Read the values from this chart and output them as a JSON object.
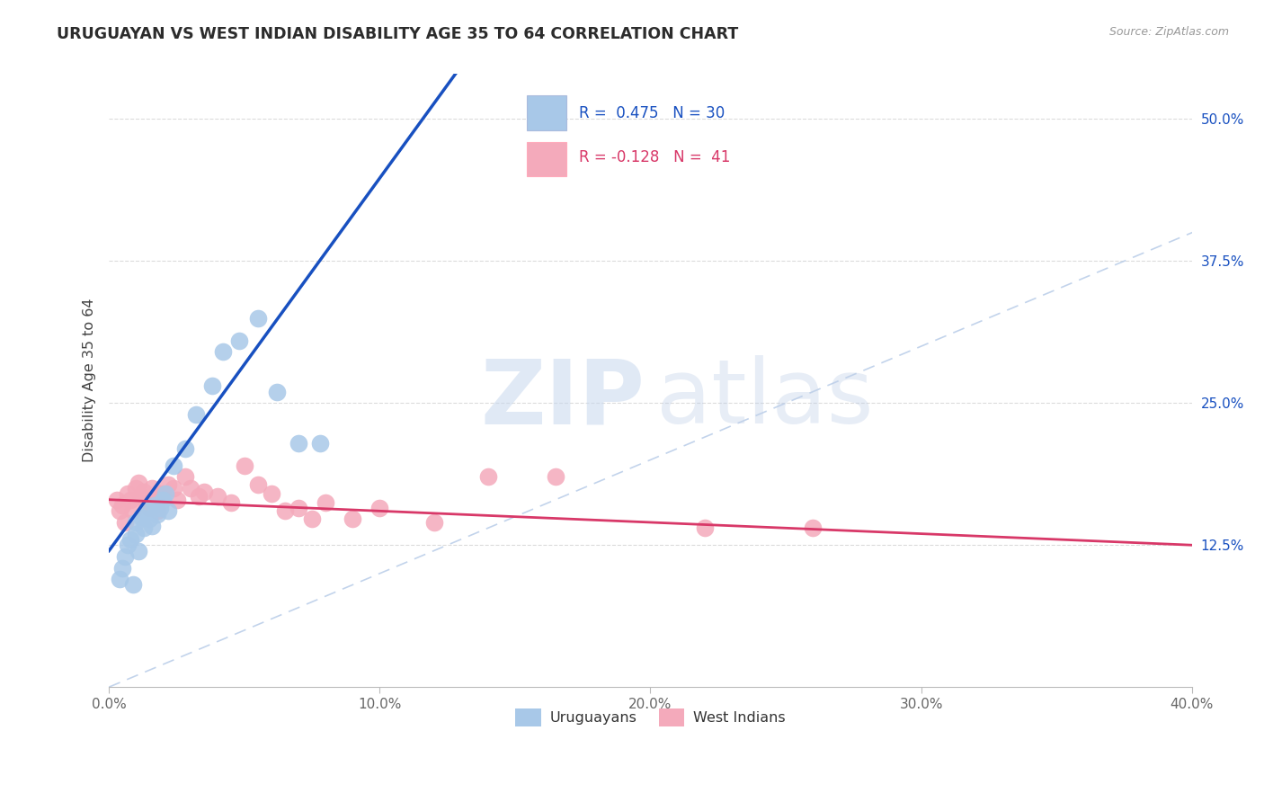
{
  "title": "URUGUAYAN VS WEST INDIAN DISABILITY AGE 35 TO 64 CORRELATION CHART",
  "source_text": "Source: ZipAtlas.com",
  "ylabel": "Disability Age 35 to 64",
  "xlim": [
    0.0,
    0.4
  ],
  "ylim": [
    0.0,
    0.54
  ],
  "xtick_values": [
    0.0,
    0.1,
    0.2,
    0.3,
    0.4
  ],
  "xtick_labels": [
    "0.0%",
    "10.0%",
    "20.0%",
    "30.0%",
    "40.0%"
  ],
  "ytick_values": [
    0.125,
    0.25,
    0.375,
    0.5
  ],
  "ytick_labels": [
    "12.5%",
    "25.0%",
    "37.5%",
    "50.0%"
  ],
  "legend_labels": [
    "Uruguayans",
    "West Indians"
  ],
  "uruguayan_color": "#A8C8E8",
  "west_indian_color": "#F4AABB",
  "uruguayan_line_color": "#1850C0",
  "west_indian_line_color": "#D83868",
  "diagonal_color": "#B8CCE8",
  "R_uruguayan": 0.475,
  "N_uruguayan": 30,
  "R_west_indian": -0.128,
  "N_west_indian": 41,
  "uruguayan_x": [
    0.004,
    0.005,
    0.006,
    0.007,
    0.008,
    0.009,
    0.01,
    0.01,
    0.011,
    0.012,
    0.013,
    0.014,
    0.015,
    0.016,
    0.017,
    0.018,
    0.019,
    0.02,
    0.021,
    0.022,
    0.024,
    0.028,
    0.032,
    0.038,
    0.042,
    0.048,
    0.055,
    0.062,
    0.07,
    0.078
  ],
  "uruguayan_y": [
    0.095,
    0.105,
    0.115,
    0.125,
    0.13,
    0.09,
    0.135,
    0.145,
    0.12,
    0.15,
    0.14,
    0.155,
    0.148,
    0.142,
    0.16,
    0.152,
    0.158,
    0.165,
    0.17,
    0.155,
    0.195,
    0.21,
    0.24,
    0.265,
    0.295,
    0.305,
    0.325,
    0.26,
    0.215,
    0.215
  ],
  "west_indian_x": [
    0.003,
    0.004,
    0.005,
    0.006,
    0.007,
    0.008,
    0.009,
    0.01,
    0.011,
    0.012,
    0.013,
    0.014,
    0.015,
    0.016,
    0.017,
    0.018,
    0.019,
    0.02,
    0.022,
    0.024,
    0.025,
    0.028,
    0.03,
    0.033,
    0.035,
    0.04,
    0.045,
    0.05,
    0.055,
    0.06,
    0.065,
    0.07,
    0.075,
    0.08,
    0.09,
    0.1,
    0.12,
    0.14,
    0.165,
    0.22,
    0.26
  ],
  "west_indian_y": [
    0.165,
    0.155,
    0.16,
    0.145,
    0.17,
    0.165,
    0.155,
    0.175,
    0.18,
    0.168,
    0.172,
    0.162,
    0.158,
    0.175,
    0.162,
    0.155,
    0.168,
    0.17,
    0.178,
    0.175,
    0.165,
    0.185,
    0.175,
    0.168,
    0.172,
    0.168,
    0.162,
    0.195,
    0.178,
    0.17,
    0.155,
    0.158,
    0.148,
    0.162,
    0.148,
    0.158,
    0.145,
    0.185,
    0.185,
    0.14,
    0.14
  ]
}
